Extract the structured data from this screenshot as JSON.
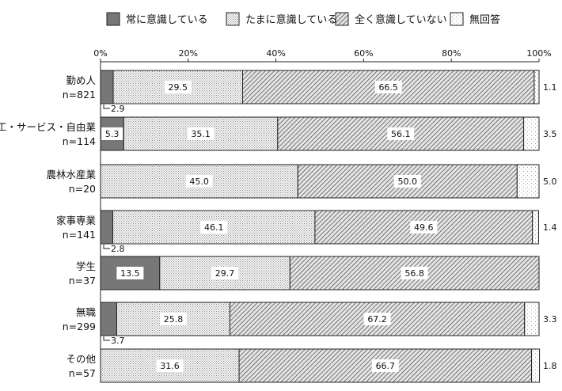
{
  "chart_data": {
    "type": "bar",
    "orientation": "horizontal",
    "stacked": true,
    "percent": true,
    "xlim": [
      0,
      100
    ],
    "xticks": [
      "0%",
      "20%",
      "40%",
      "60%",
      "80%",
      "100%"
    ],
    "legend_position": "top",
    "series": [
      {
        "name": "常に意識している",
        "color": "#777777",
        "pattern": "solid-gray"
      },
      {
        "name": "たまに意識している",
        "color": "#dddddd",
        "pattern": "fine-dots"
      },
      {
        "name": "全く意識していない",
        "color": "#bbbbbb",
        "pattern": "diagonal-hatch"
      },
      {
        "name": "無回答",
        "color": "#ffffff",
        "pattern": "sparse-dots"
      }
    ],
    "categories": [
      {
        "name": "勤め人",
        "n": "n=821",
        "values": [
          2.9,
          29.5,
          66.5,
          1.1
        ],
        "labels": [
          "2.9",
          "29.5",
          "66.5",
          "1.1"
        ]
      },
      {
        "name": "商工・サービス・自由業",
        "n": "n=114",
        "values": [
          5.3,
          35.1,
          56.1,
          3.5
        ],
        "labels": [
          "5.3",
          "35.1",
          "56.1",
          "3.5"
        ]
      },
      {
        "name": "農林水産業",
        "n": "n=20",
        "values": [
          0,
          45.0,
          50.0,
          5.0
        ],
        "labels": [
          "",
          "45.0",
          "50.0",
          "5.0"
        ]
      },
      {
        "name": "家事専業",
        "n": "n=141",
        "values": [
          2.8,
          46.1,
          49.6,
          1.4
        ],
        "labels": [
          "2.8",
          "46.1",
          "49.6",
          "1.4"
        ]
      },
      {
        "name": "学生",
        "n": "n=37",
        "values": [
          13.5,
          29.7,
          56.8,
          0
        ],
        "labels": [
          "13.5",
          "29.7",
          "56.8",
          ""
        ]
      },
      {
        "name": "無職",
        "n": "n=299",
        "values": [
          3.7,
          25.8,
          67.2,
          3.3
        ],
        "labels": [
          "3.7",
          "25.8",
          "67.2",
          "3.3"
        ]
      },
      {
        "name": "その他",
        "n": "n=57",
        "values": [
          0,
          31.6,
          66.7,
          1.8
        ],
        "labels": [
          "",
          "31.6",
          "66.7",
          "1.8"
        ]
      }
    ]
  }
}
